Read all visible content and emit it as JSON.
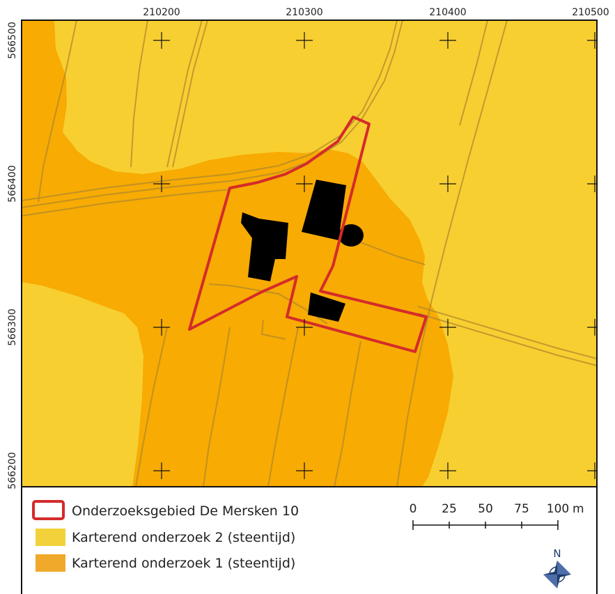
{
  "map": {
    "x_coordinates": [
      "210200",
      "210300",
      "210400",
      "210500"
    ],
    "y_coordinates": [
      "566500",
      "566400",
      "566300",
      "566200"
    ],
    "colors": {
      "zone_2": "#f8cf31",
      "zone_1": "#f7ab03",
      "boundary": "#d42b2b",
      "buildings": "#000000",
      "parcel_lines": "#b08a2a"
    }
  },
  "legend": {
    "items": [
      {
        "label": "Onderzoeksgebied De Mersken 10",
        "swatch": "outline",
        "color": "#d42b2b"
      },
      {
        "label": "Karterend onderzoek 2 (steentijd)",
        "swatch": "fill",
        "color": "#f3d13a"
      },
      {
        "label": "Karterend onderzoek 1 (steentijd)",
        "swatch": "fill",
        "color": "#f0a92a"
      }
    ]
  },
  "scalebar": {
    "ticks": [
      "0",
      "25",
      "50",
      "75",
      "100"
    ],
    "unit": "m"
  },
  "north_arrow": {
    "label": "N",
    "icon": "compass-rose-icon"
  }
}
